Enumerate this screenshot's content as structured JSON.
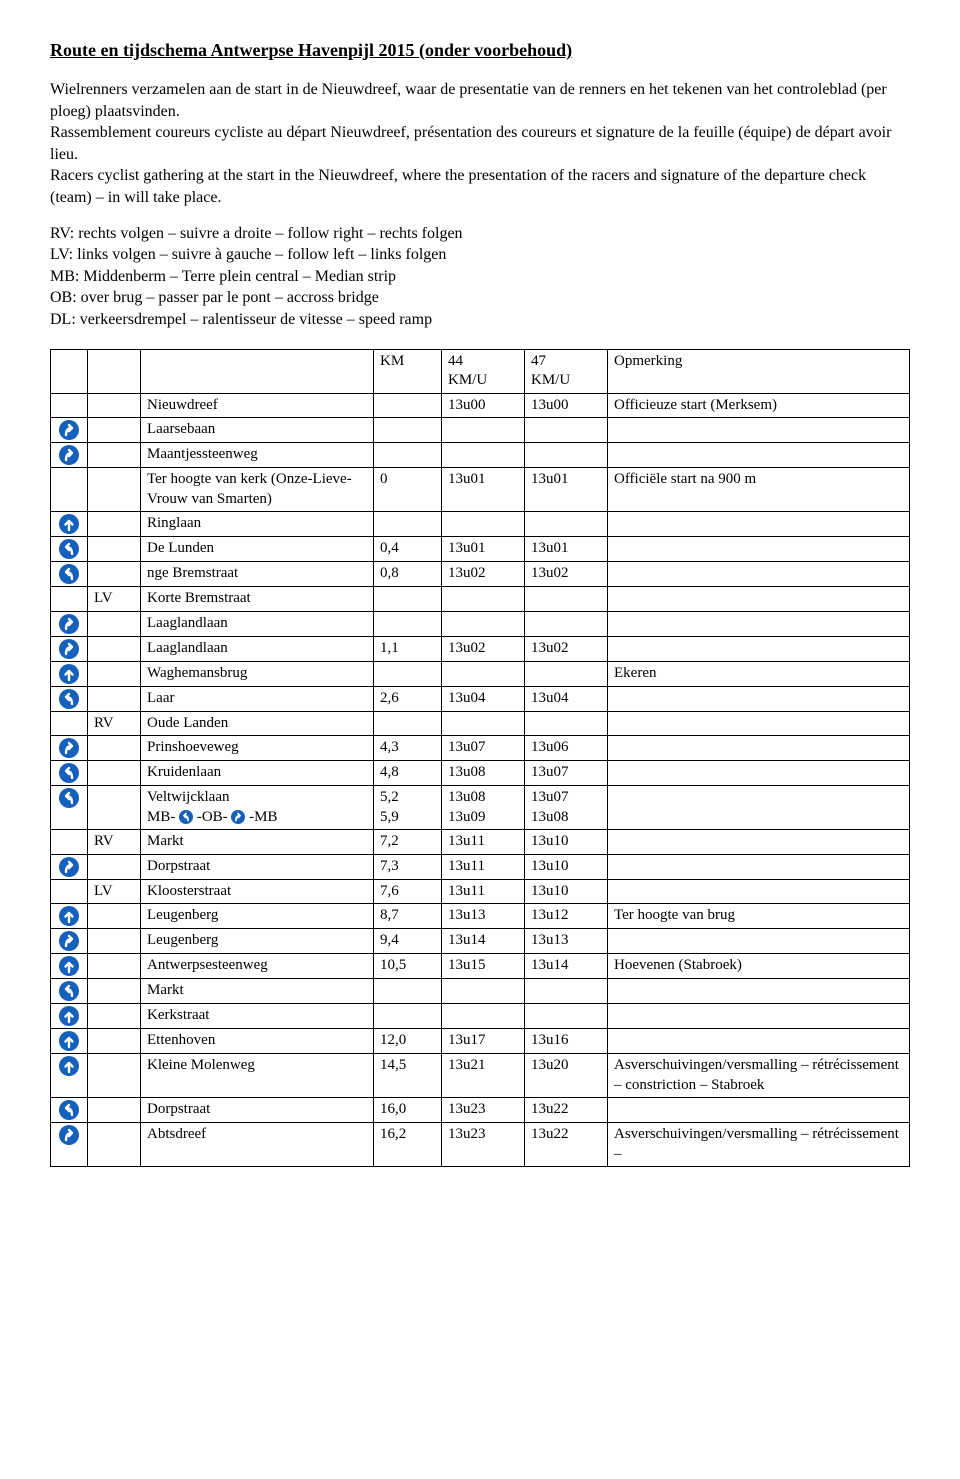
{
  "title": "Route en tijdschema Antwerpse Havenpijl 2015 (onder voorbehoud)",
  "para1": "Wielrenners verzamelen aan de start in de Nieuwdreef, waar de presentatie van de renners en het tekenen van het controleblad (per ploeg) plaatsvinden.",
  "para2": "Rassemblement coureurs cycliste au départ Nieuwdreef, présentation des coureurs et signature de la feuille (équipe) de départ avoir lieu.",
  "para3": "Racers cyclist gathering at the start in the Nieuwdreef, where the presentation of the racers and signature of the departure check (team) – in will take place.",
  "legend": {
    "l1": "RV: rechts volgen – suivre a droite – follow right – rechts folgen",
    "l2": "LV: links volgen – suivre à gauche – follow left – links folgen",
    "l3": "MB: Middenberm – Terre plein central – Median strip",
    "l4": "OB: over brug – passer par le pont – accross bridge",
    "l5": "DL: verkeersdrempel – ralentisseur de vitesse – speed ramp"
  },
  "header": {
    "km": "KM",
    "c1a": "44",
    "c1b": "KM/U",
    "c2a": "47",
    "c2b": "KM/U",
    "op": "Opmerking"
  },
  "rows": [
    {
      "icon": "",
      "dir": "",
      "name": "Nieuwdreef",
      "km": "",
      "t1": "13u00",
      "t2": "13u00",
      "op": "Officieuze start (Merksem)"
    },
    {
      "icon": "right",
      "dir": "",
      "name": "Laarsebaan",
      "km": "",
      "t1": "",
      "t2": "",
      "op": ""
    },
    {
      "icon": "right",
      "dir": "",
      "name": "Maantjessteenweg",
      "km": "",
      "t1": "",
      "t2": "",
      "op": ""
    },
    {
      "icon": "",
      "dir": "",
      "name": "Ter hoogte van kerk (Onze-Lieve-Vrouw van Smarten)",
      "km": "0",
      "t1": "13u01",
      "t2": "13u01",
      "op": "Officiële start na 900 m"
    },
    {
      "icon": "up",
      "dir": "",
      "name": "Ringlaan",
      "km": "",
      "t1": "",
      "t2": "",
      "op": ""
    },
    {
      "icon": "left",
      "dir": "",
      "name": "De Lunden",
      "km": "0,4",
      "t1": "13u01",
      "t2": "13u01",
      "op": ""
    },
    {
      "icon": "left",
      "dir": "",
      "name": "nge Bremstraat",
      "km": "0,8",
      "t1": "13u02",
      "t2": "13u02",
      "op": ""
    },
    {
      "icon": "",
      "dir": "LV",
      "name": "Korte Bremstraat",
      "km": "",
      "t1": "",
      "t2": "",
      "op": ""
    },
    {
      "icon": "right",
      "dir": "",
      "name": "Laaglandlaan",
      "km": "",
      "t1": "",
      "t2": "",
      "op": ""
    },
    {
      "icon": "right",
      "dir": "",
      "name": "Laaglandlaan",
      "km": "1,1",
      "t1": "13u02",
      "t2": "13u02",
      "op": ""
    },
    {
      "icon": "up",
      "dir": "",
      "name": "Waghemansbrug",
      "km": "",
      "t1": "",
      "t2": "",
      "op": "Ekeren"
    },
    {
      "icon": "left",
      "dir": "",
      "name": "Laar",
      "km": "2,6",
      "t1": "13u04",
      "t2": "13u04",
      "op": ""
    },
    {
      "icon": "",
      "dir": "RV",
      "name": "Oude Landen",
      "km": "",
      "t1": "",
      "t2": "",
      "op": ""
    },
    {
      "icon": "right",
      "dir": "",
      "name": "Prinshoeveweg",
      "km": "4,3",
      "t1": "13u07",
      "t2": "13u06",
      "op": ""
    },
    {
      "icon": "left",
      "dir": "",
      "name": "Kruidenlaan",
      "km": "4,8",
      "t1": "13u08",
      "t2": "13u07",
      "op": ""
    },
    {
      "icon": "left",
      "dir": "",
      "name": "Veltwijcklaan\nMB-  -OB-  -MB",
      "km": "5,2\n5,9",
      "t1": "13u08\n13u09",
      "t2": "13u07\n13u08",
      "op": "",
      "special": "veltwijck"
    },
    {
      "icon": "",
      "dir": "RV",
      "name": "Markt",
      "km": "7,2",
      "t1": "13u11",
      "t2": "13u10",
      "op": ""
    },
    {
      "icon": "right",
      "dir": "",
      "name": "Dorpstraat",
      "km": "7,3",
      "t1": "13u11",
      "t2": "13u10",
      "op": ""
    },
    {
      "icon": "",
      "dir": "LV",
      "name": "Kloosterstraat",
      "km": "7,6",
      "t1": "13u11",
      "t2": "13u10",
      "op": ""
    },
    {
      "icon": "up",
      "dir": "",
      "name": "Leugenberg",
      "km": "8,7",
      "t1": "13u13",
      "t2": "13u12",
      "op": "Ter hoogte van brug"
    },
    {
      "icon": "right",
      "dir": "",
      "name": "Leugenberg",
      "km": "9,4",
      "t1": "13u14",
      "t2": "13u13",
      "op": ""
    },
    {
      "icon": "up",
      "dir": "",
      "name": "Antwerpsesteenweg",
      "km": "10,5",
      "t1": "13u15",
      "t2": "13u14",
      "op": "Hoevenen (Stabroek)"
    },
    {
      "icon": "left",
      "dir": "",
      "name": "Markt",
      "km": "",
      "t1": "",
      "t2": "",
      "op": ""
    },
    {
      "icon": "up",
      "dir": "",
      "name": "Kerkstraat",
      "km": "",
      "t1": "",
      "t2": "",
      "op": ""
    },
    {
      "icon": "up",
      "dir": "",
      "name": "Ettenhoven",
      "km": "12,0",
      "t1": "13u17",
      "t2": "13u16",
      "op": ""
    },
    {
      "icon": "up",
      "dir": "",
      "name": "Kleine Molenweg",
      "km": "14,5",
      "t1": "13u21",
      "t2": "13u20",
      "op": "Asverschuivingen/versmalling – rétrécissement – constriction – Stabroek"
    },
    {
      "icon": "left",
      "dir": "",
      "name": "Dorpstraat",
      "km": "16,0",
      "t1": "13u23",
      "t2": "13u22",
      "op": ""
    },
    {
      "icon": "right",
      "dir": "",
      "name": "Abtsdreef",
      "km": "16,2",
      "t1": "13u23",
      "t2": "13u22",
      "op": "Asverschuivingen/versmalling – rétrécissement –"
    }
  ],
  "colors": {
    "sign_bg": "#1560bd",
    "sign_fg": "#ffffff",
    "border": "#000000"
  }
}
